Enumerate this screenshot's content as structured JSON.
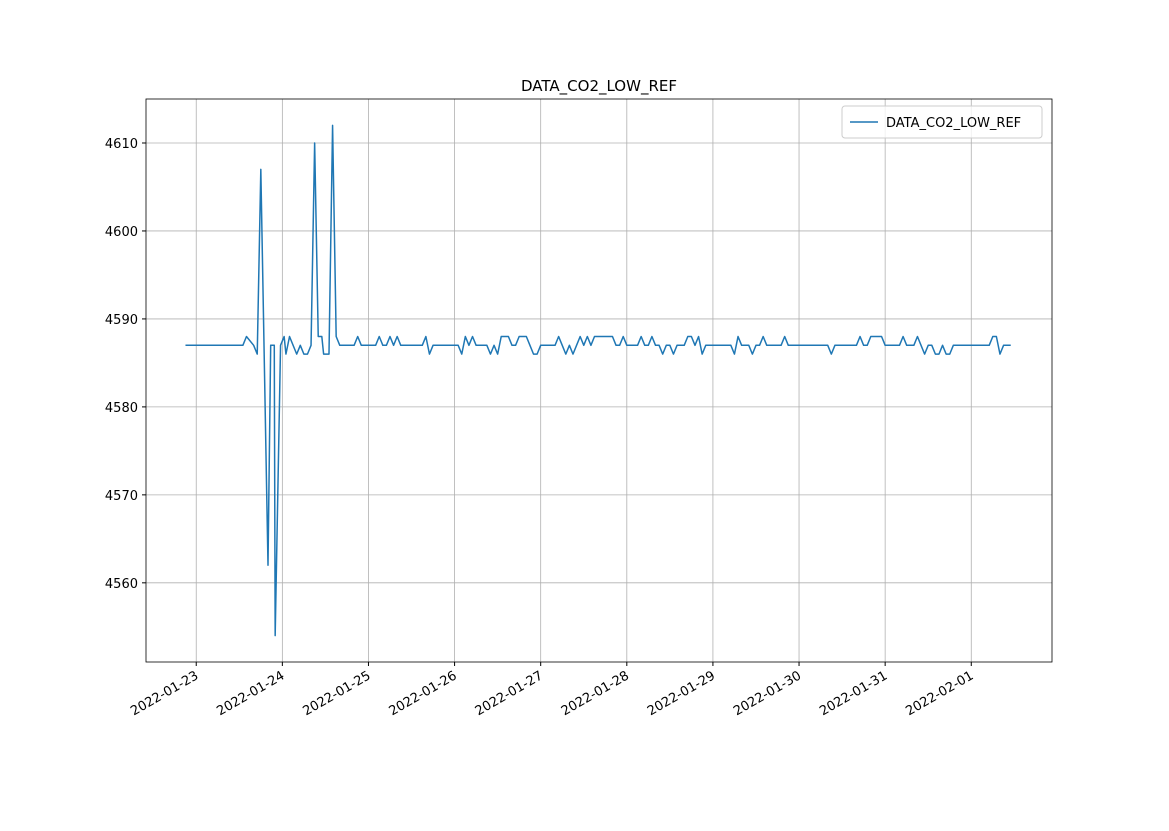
{
  "chart_data": {
    "type": "line",
    "title": "DATA_CO2_LOW_REF",
    "x": [
      "2022-01-22T21:00",
      "2022-01-23T13:00",
      "2022-01-23T14:00",
      "2022-01-23T16:00",
      "2022-01-23T17:00",
      "2022-01-23T18:00",
      "2022-01-23T20:00",
      "2022-01-23T20:45",
      "2022-01-23T21:45",
      "2022-01-23T22:00",
      "2022-01-23T23:30",
      "2022-01-24T00:30",
      "2022-01-24T01:00",
      "2022-01-24T02:00",
      "2022-01-24T04:00",
      "2022-01-24T05:00",
      "2022-01-24T06:00",
      "2022-01-24T07:00",
      "2022-01-24T08:00",
      "2022-01-24T09:00",
      "2022-01-24T10:00",
      "2022-01-24T11:00",
      "2022-01-24T11:30",
      "2022-01-24T13:00",
      "2022-01-24T14:00",
      "2022-01-24T15:00",
      "2022-01-24T16:00",
      "2022-01-24T20:00",
      "2022-01-24T21:00",
      "2022-01-24T22:00",
      "2022-01-25T02:00",
      "2022-01-25T03:00",
      "2022-01-25T04:00",
      "2022-01-25T05:00",
      "2022-01-25T06:00",
      "2022-01-25T07:00",
      "2022-01-25T08:00",
      "2022-01-25T09:00",
      "2022-01-25T15:00",
      "2022-01-25T16:00",
      "2022-01-25T17:00",
      "2022-01-25T18:00",
      "2022-01-26T01:00",
      "2022-01-26T02:00",
      "2022-01-26T03:00",
      "2022-01-26T04:00",
      "2022-01-26T05:00",
      "2022-01-26T06:00",
      "2022-01-26T09:00",
      "2022-01-26T10:00",
      "2022-01-26T11:00",
      "2022-01-26T12:00",
      "2022-01-26T13:00",
      "2022-01-26T15:00",
      "2022-01-26T16:00",
      "2022-01-26T17:00",
      "2022-01-26T18:00",
      "2022-01-26T20:00",
      "2022-01-26T21:00",
      "2022-01-26T22:00",
      "2022-01-26T23:00",
      "2022-01-27T00:00",
      "2022-01-27T04:00",
      "2022-01-27T05:00",
      "2022-01-27T06:00",
      "2022-01-27T07:00",
      "2022-01-27T08:00",
      "2022-01-27T09:00",
      "2022-01-27T10:00",
      "2022-01-27T11:00",
      "2022-01-27T12:00",
      "2022-01-27T13:00",
      "2022-01-27T14:00",
      "2022-01-27T15:00",
      "2022-01-27T20:00",
      "2022-01-27T21:00",
      "2022-01-27T22:00",
      "2022-01-27T23:00",
      "2022-01-28T00:00",
      "2022-01-28T03:00",
      "2022-01-28T04:00",
      "2022-01-28T05:00",
      "2022-01-28T06:00",
      "2022-01-28T07:00",
      "2022-01-28T08:00",
      "2022-01-28T09:00",
      "2022-01-28T10:00",
      "2022-01-28T11:00",
      "2022-01-28T12:00",
      "2022-01-28T13:00",
      "2022-01-28T14:00",
      "2022-01-28T16:00",
      "2022-01-28T17:00",
      "2022-01-28T18:00",
      "2022-01-28T19:00",
      "2022-01-28T20:00",
      "2022-01-28T21:00",
      "2022-01-28T22:00",
      "2022-01-29T05:00",
      "2022-01-29T06:00",
      "2022-01-29T07:00",
      "2022-01-29T08:00",
      "2022-01-29T10:00",
      "2022-01-29T11:00",
      "2022-01-29T12:00",
      "2022-01-29T13:00",
      "2022-01-29T14:00",
      "2022-01-29T15:00",
      "2022-01-29T19:00",
      "2022-01-29T20:00",
      "2022-01-29T21:00",
      "2022-01-30T07:00",
      "2022-01-30T08:00",
      "2022-01-30T09:00",
      "2022-01-30T10:00",
      "2022-01-30T16:00",
      "2022-01-30T17:00",
      "2022-01-30T18:00",
      "2022-01-30T19:00",
      "2022-01-30T20:00",
      "2022-01-30T23:00",
      "2022-01-31T00:00",
      "2022-01-31T04:00",
      "2022-01-31T05:00",
      "2022-01-31T06:00",
      "2022-01-31T08:00",
      "2022-01-31T09:00",
      "2022-01-31T10:00",
      "2022-01-31T11:00",
      "2022-01-31T12:00",
      "2022-01-31T13:00",
      "2022-01-31T14:00",
      "2022-01-31T15:00",
      "2022-01-31T16:00",
      "2022-01-31T17:00",
      "2022-01-31T18:00",
      "2022-01-31T19:00",
      "2022-02-01T05:00",
      "2022-02-01T06:00",
      "2022-02-01T07:00",
      "2022-02-01T08:00",
      "2022-02-01T09:00",
      "2022-02-01T11:00"
    ],
    "series": [
      {
        "name": "DATA_CO2_LOW_REF",
        "color": "#1f77b4",
        "values": [
          4587,
          4587,
          4588,
          4587,
          4586,
          4607,
          4562,
          4587,
          4587,
          4554,
          4587,
          4588,
          4586,
          4588,
          4586,
          4587,
          4586,
          4586,
          4587,
          4610,
          4588,
          4588,
          4586,
          4586,
          4612,
          4588,
          4587,
          4587,
          4588,
          4587,
          4587,
          4588,
          4587,
          4587,
          4588,
          4587,
          4588,
          4587,
          4587,
          4588,
          4586,
          4587,
          4587,
          4586,
          4588,
          4587,
          4588,
          4587,
          4587,
          4586,
          4587,
          4586,
          4588,
          4588,
          4587,
          4587,
          4588,
          4588,
          4587,
          4586,
          4586,
          4587,
          4587,
          4588,
          4587,
          4586,
          4587,
          4586,
          4587,
          4588,
          4587,
          4588,
          4587,
          4588,
          4588,
          4587,
          4587,
          4588,
          4587,
          4587,
          4588,
          4587,
          4587,
          4588,
          4587,
          4587,
          4586,
          4587,
          4587,
          4586,
          4587,
          4587,
          4588,
          4588,
          4587,
          4588,
          4586,
          4587,
          4587,
          4586,
          4588,
          4587,
          4587,
          4586,
          4587,
          4587,
          4588,
          4587,
          4587,
          4588,
          4587,
          4587,
          4587,
          4586,
          4587,
          4587,
          4588,
          4587,
          4587,
          4588,
          4588,
          4587,
          4587,
          4588,
          4587,
          4587,
          4588,
          4587,
          4586,
          4587,
          4587,
          4586,
          4586,
          4587,
          4586,
          4586,
          4587,
          4587,
          4588,
          4588,
          4586,
          4587,
          4587
        ]
      }
    ],
    "xlim": [
      "2022-01-22T10:00",
      "2022-02-01T22:30"
    ],
    "xticks": [
      "2022-01-23",
      "2022-01-24",
      "2022-01-25",
      "2022-01-26",
      "2022-01-27",
      "2022-01-28",
      "2022-01-29",
      "2022-01-30",
      "2022-01-31",
      "2022-02-01"
    ],
    "ylim": [
      4551,
      4615
    ],
    "yticks": [
      4560,
      4570,
      4580,
      4590,
      4600,
      4610
    ],
    "grid": true,
    "legend": "upper right"
  }
}
